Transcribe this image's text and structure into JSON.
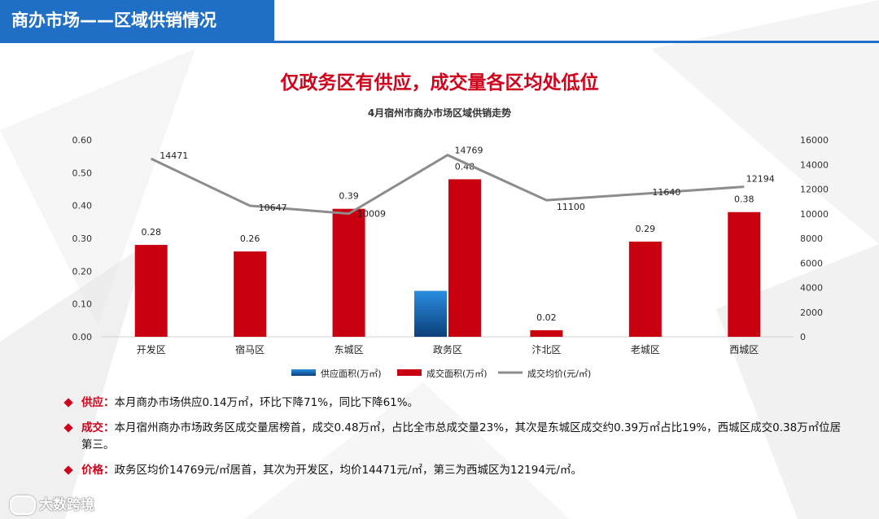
{
  "header": {
    "title": "商办市场——区域供销情况"
  },
  "headline": "仅政务区有供应，成交量各区均处低位",
  "chart_data": {
    "type": "bar",
    "title": "4月宿州市商办市场区域供销走势",
    "categories": [
      "开发区",
      "宿马区",
      "东城区",
      "政务区",
      "汴北区",
      "老城区",
      "西城区"
    ],
    "series": [
      {
        "name": "供应面积(万㎡)",
        "type": "bar",
        "axis": "left",
        "color": "#1f78c8",
        "values": [
          0,
          0,
          0,
          0.14,
          0,
          0,
          0
        ],
        "labels": [
          "",
          "",
          "",
          "",
          "",
          "",
          ""
        ]
      },
      {
        "name": "成交面积(万㎡)",
        "type": "bar",
        "axis": "left",
        "color": "#c8000f",
        "values": [
          0.28,
          0.26,
          0.39,
          0.48,
          0.02,
          0.29,
          0.38
        ],
        "labels": [
          "0.28",
          "0.26",
          "0.39",
          "0.48",
          "0.02",
          "0.29",
          "0.38"
        ]
      },
      {
        "name": "成交均价(元/㎡)",
        "type": "line",
        "axis": "right",
        "color": "#8c8c8c",
        "values": [
          14471,
          10647,
          10009,
          14769,
          11100,
          11640,
          12194
        ],
        "labels": [
          "14471",
          "10647",
          "10009",
          "14769",
          "11100",
          "11640",
          "12194"
        ]
      }
    ],
    "y_left": {
      "ylim": [
        0,
        0.6
      ],
      "ticks": [
        "0.00",
        "0.10",
        "0.20",
        "0.30",
        "0.40",
        "0.50",
        "0.60"
      ]
    },
    "y_right": {
      "ylim": [
        0,
        16000
      ],
      "ticks": [
        "0",
        "2000",
        "4000",
        "6000",
        "8000",
        "10000",
        "12000",
        "14000",
        "16000"
      ]
    },
    "legend": "bottom",
    "grid": false
  },
  "bullets": [
    {
      "label": "供应：",
      "text": "本月商办市场供应0.14万㎡，环比下降71%，同比下降61%。"
    },
    {
      "label": "成交：",
      "text": "本月宿州商办市场政务区成交量居榜首，成交0.48万㎡，占比全市总成交量23%，其次是东城区成交约0.39万㎡占比19%，西城区成交0.38万㎡位居第三。"
    },
    {
      "label": "价格：",
      "text": "政务区均价14769元/㎡居首，其次为开发区，均价14471元/㎡，第三为西城区为12194元/㎡。"
    }
  ],
  "footer": {
    "brand": "大数跨境"
  }
}
